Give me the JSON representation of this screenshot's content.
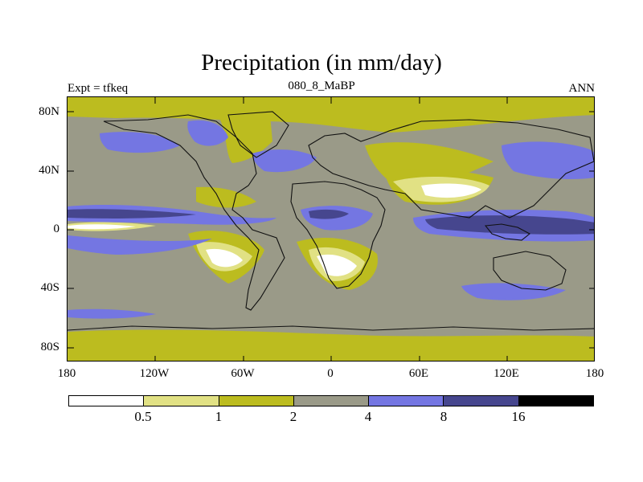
{
  "title": "Precipitation (in mm/day)",
  "subtitle": "080_8_MaBP",
  "left_label": "Expt = tfkeq",
  "right_label": "ANN",
  "y_ticks": [
    "80N",
    "40N",
    "0",
    "40S",
    "80S"
  ],
  "x_ticks": [
    "180",
    "120W",
    "60W",
    "0",
    "60E",
    "120E",
    "180"
  ],
  "colorbar": {
    "labels": [
      "0.5",
      "1",
      "2",
      "4",
      "8",
      "16"
    ],
    "colors": [
      "#ffffff",
      "#e1e184",
      "#bcbc1f",
      "#9a9a88",
      "#7476e2",
      "#46468e",
      "#000000"
    ]
  },
  "colors": {
    "frame": "#000000",
    "coastline": "#111111"
  }
}
